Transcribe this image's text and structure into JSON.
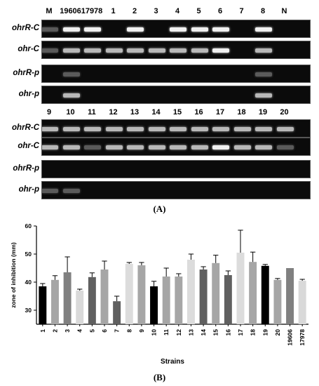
{
  "figure_a": {
    "label": "(A)",
    "top_lanes": [
      "M",
      "19606",
      "17978",
      "1",
      "2",
      "3",
      "4",
      "5",
      "6",
      "7",
      "8",
      "N"
    ],
    "bottom_lanes": [
      "9",
      "10",
      "11",
      "12",
      "13",
      "14",
      "15",
      "16",
      "17",
      "18",
      "19",
      "20"
    ],
    "row_labels": [
      "ohrR-C",
      "ohr-C",
      "ohrR-p",
      "ohr-p"
    ]
  },
  "figure_b": {
    "label": "(B)"
  },
  "chart_data": {
    "type": "bar",
    "title": "",
    "xlabel": "Strains",
    "ylabel": "zone of inhibition (mm)",
    "ylim": [
      25,
      60
    ],
    "yticks": [
      30,
      40,
      50,
      60
    ],
    "categories": [
      "1",
      "2",
      "3",
      "4",
      "5",
      "6",
      "7",
      "8",
      "9",
      "10",
      "11",
      "12",
      "13",
      "14",
      "15",
      "16",
      "17",
      "18",
      "19",
      "20",
      "19606",
      "17978"
    ],
    "values": [
      38.5,
      40.8,
      43.5,
      37,
      41.8,
      44.5,
      33.2,
      46.5,
      46,
      38.5,
      42,
      42,
      48,
      44.5,
      46.8,
      42.5,
      50.5,
      47.2,
      45.8,
      40.8,
      45,
      40.5
    ],
    "errors": [
      1,
      1.5,
      5.5,
      0.5,
      1.5,
      3,
      1.8,
      0.5,
      1,
      1.8,
      3,
      1,
      2,
      1,
      2.8,
      1.5,
      8,
      3.5,
      0.5,
      0.5,
      0,
      0.5
    ],
    "colors": [
      "#000000",
      "#a6a6a6",
      "#808080",
      "#d9d9d9",
      "#606060",
      "#a6a6a6",
      "#606060",
      "#dcdcdc",
      "#a6a6a6",
      "#000000",
      "#a6a6a6",
      "#a6a6a6",
      "#dcdcdc",
      "#606060",
      "#a6a6a6",
      "#606060",
      "#dcdcdc",
      "#a6a6a6",
      "#000000",
      "#a6a6a6",
      "#808080",
      "#d9d9d9"
    ],
    "grid": false,
    "legend": "none"
  }
}
